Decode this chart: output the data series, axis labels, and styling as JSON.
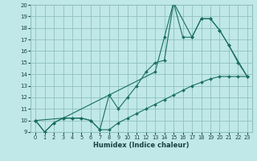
{
  "xlabel": "Humidex (Indice chaleur)",
  "xlim": [
    -0.5,
    23.5
  ],
  "ylim": [
    9,
    20
  ],
  "xticks": [
    0,
    1,
    2,
    3,
    4,
    5,
    6,
    7,
    8,
    9,
    10,
    11,
    12,
    13,
    14,
    15,
    16,
    17,
    18,
    19,
    20,
    21,
    22,
    23
  ],
  "yticks": [
    9,
    10,
    11,
    12,
    13,
    14,
    15,
    16,
    17,
    18,
    19,
    20
  ],
  "background_color": "#c0e8e8",
  "grid_color": "#90c0c0",
  "line_color": "#1a7060",
  "series": [
    {
      "x": [
        0,
        1,
        2,
        3,
        4,
        5,
        6,
        7,
        8,
        9,
        10,
        11,
        12,
        13,
        14,
        15,
        16,
        17,
        18,
        19,
        20,
        21,
        22,
        23
      ],
      "y": [
        10,
        9,
        9.8,
        10.2,
        10.2,
        10.2,
        10,
        9.2,
        12.2,
        11.0,
        12.0,
        13.0,
        14.2,
        15.0,
        15.2,
        20.2,
        17.2,
        17.2,
        18.8,
        18.8,
        17.8,
        16.5,
        15.0,
        13.8
      ]
    },
    {
      "x": [
        0,
        1,
        2,
        3,
        4,
        5,
        6,
        7,
        8,
        9,
        10,
        11,
        12,
        13,
        14,
        15,
        16,
        17,
        18,
        19,
        20,
        21,
        22,
        23
      ],
      "y": [
        10,
        9,
        9.8,
        10.2,
        10.2,
        10.2,
        10,
        9.2,
        9.2,
        9.8,
        10.2,
        10.6,
        11.0,
        11.4,
        11.8,
        12.2,
        12.6,
        13.0,
        13.3,
        13.6,
        13.8,
        13.8,
        13.8,
        13.8
      ]
    },
    {
      "x": [
        0,
        3,
        8,
        13,
        14,
        15,
        17,
        18,
        19,
        20,
        21,
        23
      ],
      "y": [
        10,
        10.2,
        12.2,
        14.2,
        17.2,
        20.2,
        17.2,
        18.8,
        18.8,
        17.8,
        16.5,
        13.8
      ]
    }
  ]
}
